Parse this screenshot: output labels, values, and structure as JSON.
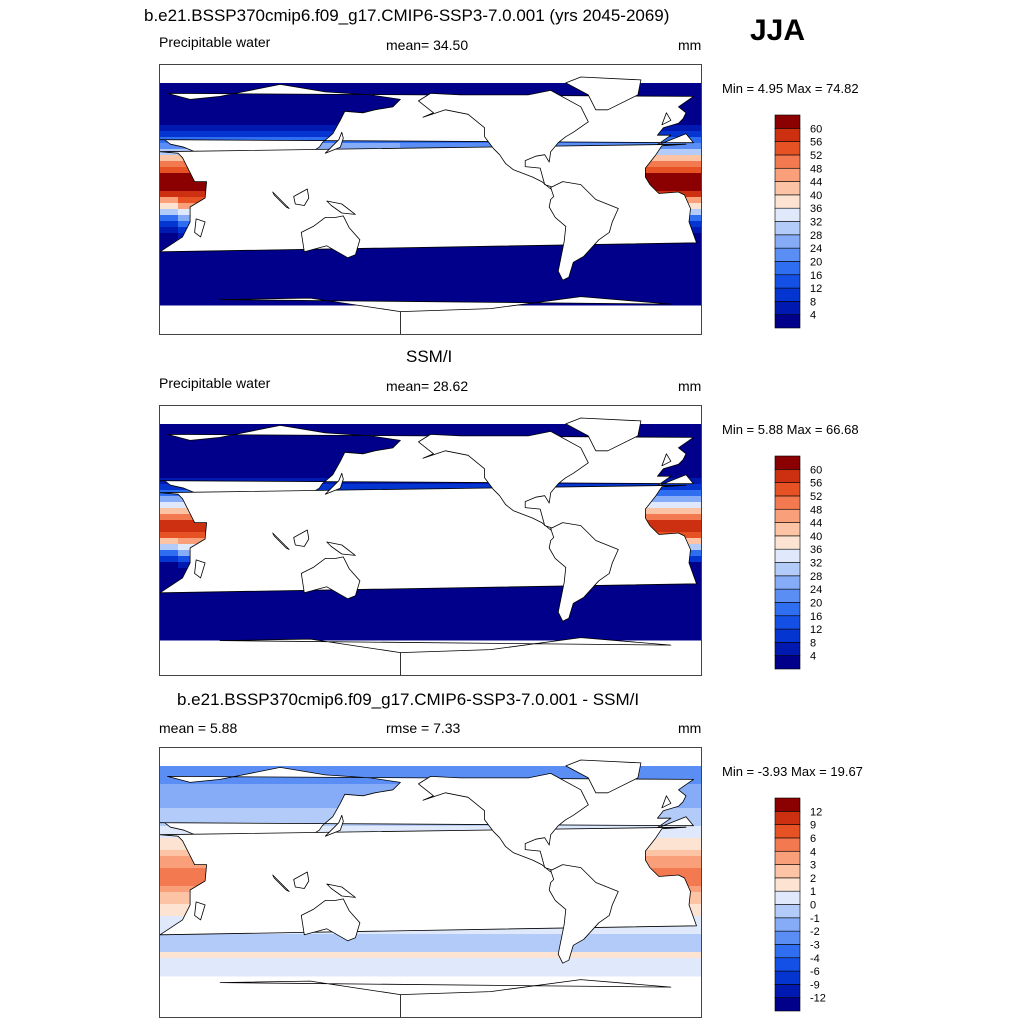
{
  "season": "JJA",
  "panels": [
    {
      "title": "b.e21.BSSP370cmip6.f09_g17.CMIP6-SSP3-7.0.001 (yrs 2045-2069)",
      "left_label": "Precipitable water",
      "center_label": "mean=  34.50",
      "units": "mm",
      "min_max": "Min =   4.95 Max =  74.82",
      "kind": "abs",
      "colorbar": {
        "labels": [
          "4",
          "8",
          "12",
          "16",
          "20",
          "24",
          "28",
          "32",
          "36",
          "40",
          "44",
          "48",
          "52",
          "56",
          "60"
        ],
        "colors": [
          "#00008b",
          "#0019b0",
          "#0535d0",
          "#1550e6",
          "#2f6ef0",
          "#5a8ef5",
          "#86abf7",
          "#b3cbf9",
          "#dfe9fb",
          "#fde4d2",
          "#fcc3a4",
          "#f9a07a",
          "#f37a50",
          "#e65224",
          "#cc3010",
          "#8b0000"
        ]
      }
    },
    {
      "title": "SSM/I",
      "left_label": "Precipitable water",
      "center_label": "mean=  28.62",
      "units": "mm",
      "min_max": "Min =   5.88 Max =  66.68",
      "kind": "obs",
      "colorbar": {
        "labels": [
          "4",
          "8",
          "12",
          "16",
          "20",
          "24",
          "28",
          "32",
          "36",
          "40",
          "44",
          "48",
          "52",
          "56",
          "60"
        ],
        "colors": [
          "#00008b",
          "#0019b0",
          "#0535d0",
          "#1550e6",
          "#2f6ef0",
          "#5a8ef5",
          "#86abf7",
          "#b3cbf9",
          "#dfe9fb",
          "#fde4d2",
          "#fcc3a4",
          "#f9a07a",
          "#f37a50",
          "#e65224",
          "#cc3010",
          "#8b0000"
        ]
      }
    },
    {
      "title": "b.e21.BSSP370cmip6.f09_g17.CMIP6-SSP3-7.0.001 - SSM/I",
      "left_label": "mean =   5.88",
      "center_label": "rmse =   7.33",
      "units": "mm",
      "min_max": "Min =  -3.93 Max =  19.67",
      "kind": "diff",
      "colorbar": {
        "labels": [
          "-12",
          "-9",
          "-6",
          "-4",
          "-3",
          "-2",
          "-1",
          "0",
          "1",
          "2",
          "3",
          "4",
          "6",
          "9",
          "12"
        ],
        "colors": [
          "#00008b",
          "#0019b0",
          "#0535d0",
          "#1550e6",
          "#2f6ef0",
          "#5a8ef5",
          "#86abf7",
          "#b3cbf9",
          "#dfe9fb",
          "#fde4d2",
          "#fcc3a4",
          "#f9a07a",
          "#f37a50",
          "#e65224",
          "#cc3010",
          "#8b0000"
        ]
      }
    }
  ]
}
